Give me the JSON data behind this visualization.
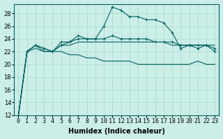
{
  "xlabel": "Humidex (Indice chaleur)",
  "xlim": [
    -0.5,
    23.5
  ],
  "ylim": [
    12,
    29.5
  ],
  "yticks": [
    12,
    14,
    16,
    18,
    20,
    22,
    24,
    26,
    28
  ],
  "xticks": [
    0,
    1,
    2,
    3,
    4,
    5,
    6,
    7,
    8,
    9,
    10,
    11,
    12,
    13,
    14,
    15,
    16,
    17,
    18,
    19,
    20,
    21,
    22,
    23
  ],
  "bg_color": "#cceee8",
  "grid_color": "#aaddcc",
  "line_color": "#006060",
  "lines": [
    {
      "y": [
        12,
        22,
        23,
        22.5,
        22,
        23.5,
        23.5,
        24.5,
        24,
        24,
        26,
        29,
        28.5,
        27.5,
        27.5,
        27,
        27,
        26.5,
        25,
        22.5,
        23,
        22.5,
        23,
        22
      ],
      "marker": true
    },
    {
      "y": [
        12,
        22,
        23,
        22.5,
        22,
        23,
        23.5,
        24,
        24,
        24,
        24,
        24.5,
        24,
        24,
        24,
        24,
        23.5,
        23.5,
        23.5,
        23,
        23,
        23,
        23,
        22.5
      ],
      "marker": true
    },
    {
      "y": [
        12,
        22,
        23,
        22,
        22,
        23,
        23,
        23.5,
        23.5,
        23.5,
        23.5,
        23.5,
        23.5,
        23.5,
        23.5,
        23.5,
        23.5,
        23.5,
        23,
        23,
        23,
        23,
        23,
        23
      ],
      "marker": false
    },
    {
      "y": [
        12,
        22,
        22.5,
        22,
        22,
        22,
        21.5,
        21.5,
        21,
        21,
        20.5,
        20.5,
        20.5,
        20.5,
        20,
        20,
        20,
        20,
        20,
        20,
        20,
        20.5,
        20,
        20
      ],
      "marker": false
    }
  ],
  "tick_fontsize": 6,
  "label_fontsize": 7
}
